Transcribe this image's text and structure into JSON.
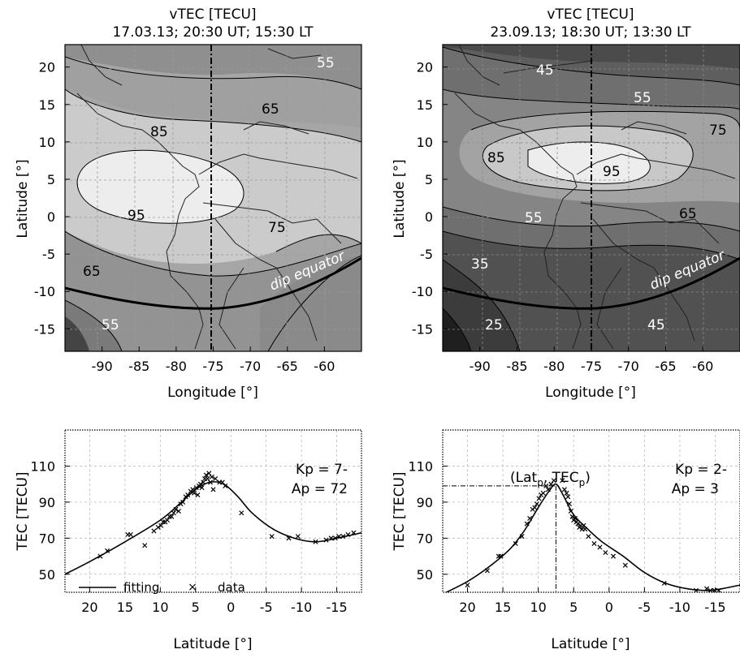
{
  "chart_data": [
    {
      "type": "heatmap",
      "title": "vTEC [TECU]",
      "subtitle": "17.03.13;  20:30 UT;  15:30 LT",
      "xlabel": "Longitude [°]",
      "ylabel": "Latitude [°]",
      "xlim": [
        -95,
        -55
      ],
      "ylim": [
        -18,
        23
      ],
      "xticks": [
        -90,
        -85,
        -80,
        -75,
        -70,
        -65,
        -60
      ],
      "yticks": [
        20,
        15,
        10,
        5,
        0,
        -5,
        -10,
        -15
      ],
      "grid": true,
      "contour_levels": [
        55,
        65,
        75,
        85,
        95
      ],
      "contour_labels": [
        "55",
        "65",
        "85",
        "95",
        "75",
        "65",
        "55"
      ],
      "dip_equator_label": "dip equator",
      "meridian_lon": -75
    },
    {
      "type": "heatmap",
      "title": "vTEC [TECU]",
      "subtitle": "23.09.13;  18:30 UT;  13:30 LT",
      "xlabel": "Longitude [°]",
      "ylabel": "Latitude [°]",
      "xlim": [
        -95,
        -55
      ],
      "ylim": [
        -18,
        23
      ],
      "xticks": [
        -90,
        -85,
        -80,
        -75,
        -70,
        -65,
        -60
      ],
      "yticks": [
        20,
        15,
        10,
        5,
        0,
        -5,
        -10,
        -15
      ],
      "grid": true,
      "contour_levels": [
        25,
        35,
        45,
        55,
        65,
        75,
        85,
        95
      ],
      "contour_labels": [
        "45",
        "55",
        "75",
        "85",
        "95",
        "55",
        "65",
        "35",
        "25",
        "45"
      ],
      "dip_equator_label": "dip equator",
      "meridian_lon": -75
    },
    {
      "type": "scatter",
      "xlabel": "Latitude [°]",
      "ylabel": "TEC [TECU]",
      "xlim": [
        23.5,
        -18.5
      ],
      "ylim": [
        40,
        130
      ],
      "xticks": [
        20,
        15,
        10,
        5,
        0,
        -5,
        -10,
        -15
      ],
      "yticks": [
        50,
        70,
        90,
        110
      ],
      "grid": true,
      "annotations": [
        "Kp = 7-",
        "Ap = 72"
      ],
      "legend": {
        "placement": "bottom-left",
        "fit_label": "fitting",
        "data_label": "data"
      },
      "fit": {
        "x": [
          23.5,
          20,
          15,
          10,
          7,
          5,
          3,
          1,
          -1,
          -3,
          -6,
          -9,
          -12,
          -15,
          -18.5
        ],
        "y": [
          50,
          57,
          68,
          80,
          90,
          97,
          101,
          100,
          93,
          84,
          75,
          70,
          68,
          70,
          73
        ]
      },
      "data": {
        "x": [
          18.5,
          17.5,
          14.6,
          14.2,
          12.2,
          10.9,
          10.3,
          9.9,
          9.6,
          9.3,
          9.0,
          8.7,
          8.4,
          8.1,
          7.8,
          7.4,
          7.1,
          6.8,
          6.4,
          6.1,
          5.7,
          5.4,
          5.2,
          4.9,
          4.7,
          4.5,
          4.3,
          4.1,
          3.9,
          3.7,
          3.5,
          3.3,
          3.1,
          2.9,
          2.7,
          2.5,
          2.2,
          1.6,
          1.2,
          0.8,
          -1.5,
          -5.8,
          -8.2,
          -9.5,
          -12.0,
          -13.5,
          -14.2,
          -14.8,
          -15.3,
          -15.9,
          -16.6,
          -17.4
        ],
        "y": [
          60,
          63,
          72,
          72,
          66,
          74,
          76,
          77,
          79,
          79,
          80,
          82,
          82,
          84,
          86,
          85,
          89,
          90,
          93,
          94,
          96,
          97,
          95,
          98,
          94,
          99,
          100,
          98,
          101,
          103,
          105,
          103,
          106,
          101,
          104,
          97,
          103,
          101,
          101,
          99,
          84,
          71,
          70,
          71,
          68,
          69,
          70,
          70,
          71,
          71,
          72,
          73
        ]
      }
    },
    {
      "type": "scatter",
      "xlabel": "Latitude [°]",
      "ylabel": "TEC [TECU]",
      "xlim": [
        23.5,
        -18.5
      ],
      "ylim": [
        40,
        130
      ],
      "xticks": [
        20,
        15,
        10,
        5,
        0,
        -5,
        -10,
        -15
      ],
      "yticks": [
        50,
        70,
        90,
        110
      ],
      "grid": true,
      "annotations": [
        "Kp = 2-",
        "Ap = 3"
      ],
      "peak_label_parts": [
        "(Lat",
        "p",
        ", TEC",
        "p",
        ")"
      ],
      "peak": {
        "lat": 7.5,
        "tec": 99
      },
      "fit": {
        "x": [
          23.5,
          20,
          17,
          14,
          12,
          10,
          8.5,
          7.5,
          6.5,
          5,
          3,
          1,
          -2,
          -5,
          -8,
          -11,
          -14,
          -16,
          -18.5
        ],
        "y": [
          39,
          46,
          54,
          64,
          74,
          87,
          96,
          100,
          94,
          83,
          75,
          68,
          60,
          51,
          45,
          42,
          41,
          42,
          44
        ]
      },
      "data": {
        "x": [
          20.0,
          17.2,
          15.6,
          15.3,
          13.2,
          12.3,
          11.6,
          11.2,
          10.8,
          10.5,
          10.2,
          9.9,
          9.6,
          9.3,
          8.9,
          8.6,
          8.2,
          7.8,
          6.6,
          6.3,
          6.0,
          5.8,
          5.6,
          5.4,
          5.2,
          5.0,
          4.8,
          4.6,
          4.4,
          4.2,
          4.0,
          3.8,
          3.6,
          3.4,
          2.9,
          2.1,
          1.3,
          0.5,
          -0.6,
          -2.3,
          -7.8,
          -12.3,
          -13.8,
          -14.3,
          -14.9,
          -15.5
        ],
        "y": [
          44,
          52,
          60,
          60,
          67,
          71,
          78,
          81,
          86,
          87,
          89,
          92,
          94,
          95,
          99,
          97,
          100,
          102,
          102,
          97,
          95,
          93,
          89,
          85,
          82,
          80,
          81,
          79,
          78,
          76,
          77,
          75,
          77,
          75,
          71,
          67,
          65,
          62,
          60,
          55,
          45,
          41,
          42,
          41,
          41,
          41
        ]
      }
    }
  ]
}
